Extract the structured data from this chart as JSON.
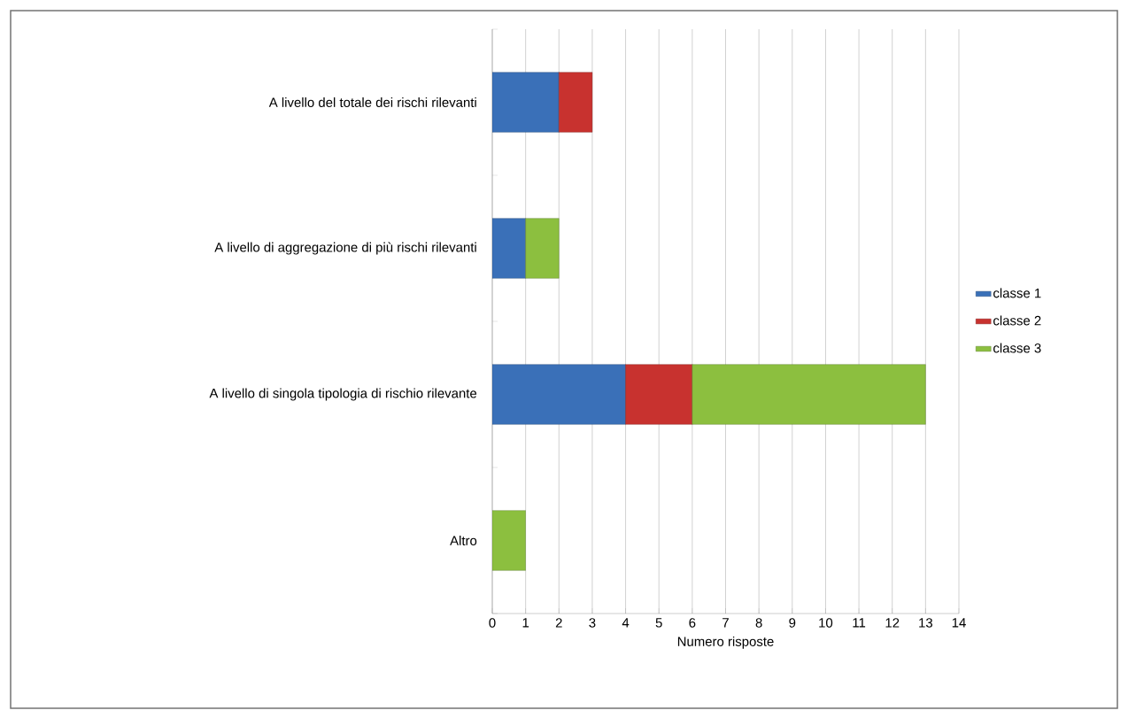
{
  "chart_data": {
    "type": "bar",
    "orientation": "horizontal",
    "stacked": true,
    "categories": [
      "A livello del totale dei rischi rilevanti",
      "A livello di aggregazione di più rischi rilevanti",
      "A  livello di singola tipologia di rischio rilevante",
      "Altro"
    ],
    "series": [
      {
        "name": "classe 1",
        "color": "#3a70b8",
        "values": [
          2,
          1,
          4,
          null
        ]
      },
      {
        "name": "classe 2",
        "color": "#c8322f",
        "values": [
          1,
          null,
          2,
          null
        ]
      },
      {
        "name": "classe 3",
        "color": "#8cbf3f",
        "values": [
          null,
          1,
          7,
          1
        ]
      }
    ],
    "xlabel": "Numero risposte",
    "xlim": [
      0,
      14
    ],
    "xticks": [
      0,
      1,
      2,
      3,
      4,
      5,
      6,
      7,
      8,
      9,
      10,
      11,
      12,
      13,
      14
    ],
    "grid": "x",
    "legend": "right"
  }
}
